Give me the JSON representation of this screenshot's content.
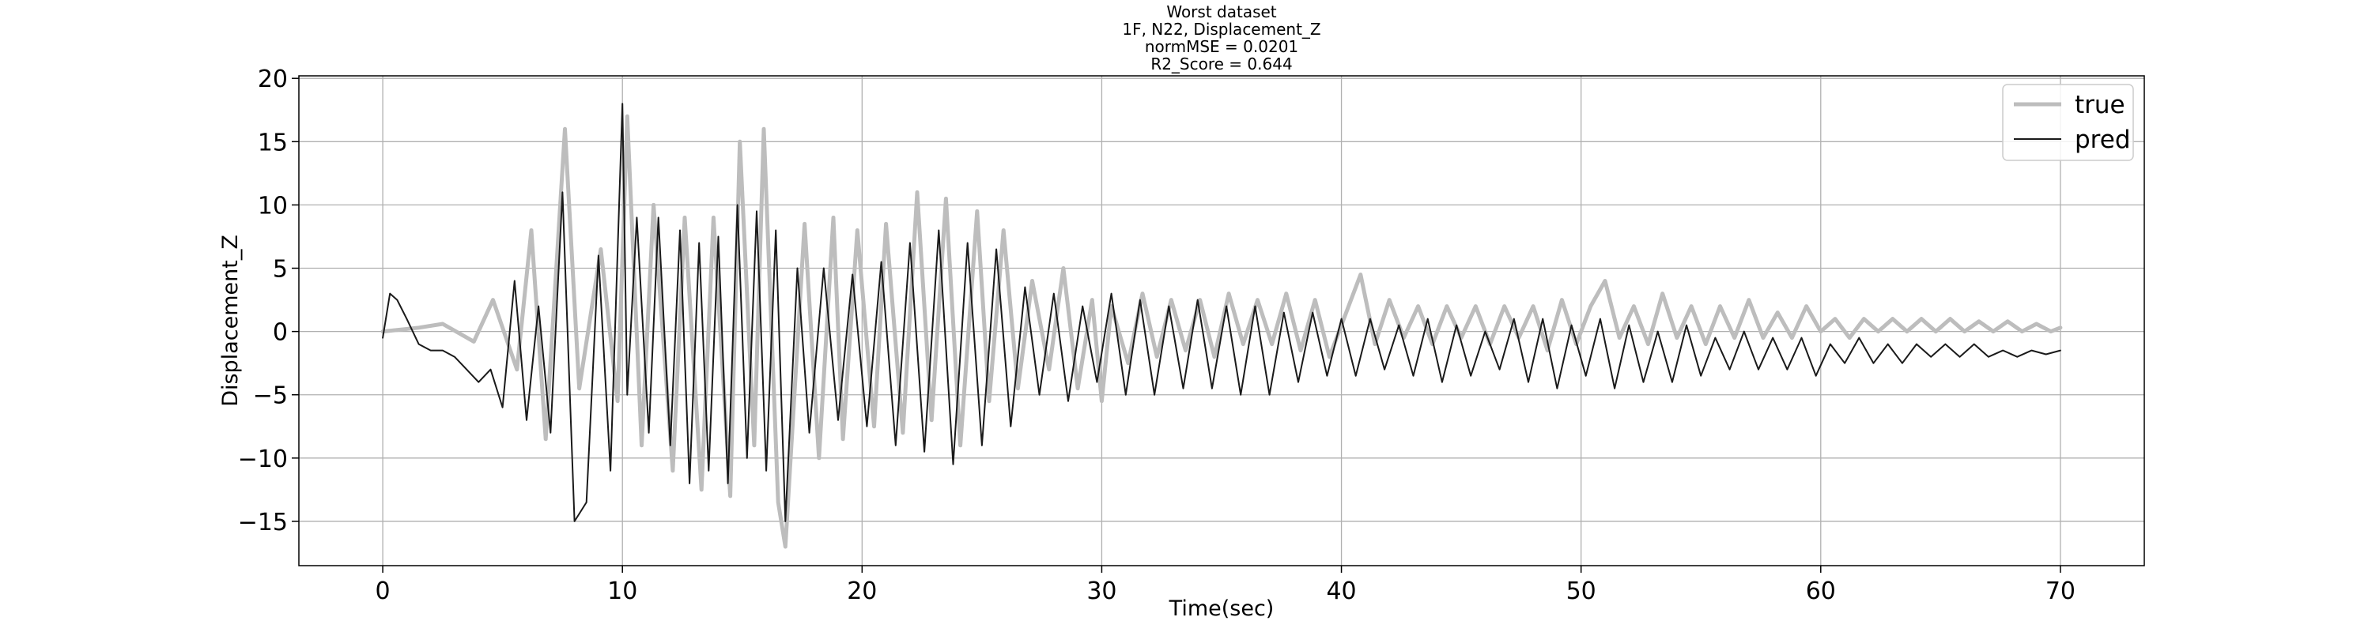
{
  "chart_data": {
    "type": "line",
    "title_lines": [
      "Worst dataset",
      "1F, N22, Displacement_Z",
      "normMSE = 0.0201",
      "R2_Score = 0.644"
    ],
    "xlabel": "Time(sec)",
    "ylabel": "Displacement_Z",
    "xlim": [
      -3.5,
      73.5
    ],
    "ylim": [
      -18.5,
      20.2
    ],
    "xticks": [
      0,
      10,
      20,
      30,
      40,
      50,
      60,
      70
    ],
    "yticks": [
      -15,
      -10,
      -5,
      0,
      5,
      10,
      15,
      20
    ],
    "xtick_labels": [
      "0",
      "10",
      "20",
      "30",
      "40",
      "50",
      "60",
      "70"
    ],
    "ytick_labels": [
      "−15",
      "−10",
      "−5",
      "0",
      "5",
      "10",
      "15",
      "20"
    ],
    "grid": true,
    "legend_position": "top-right",
    "series": [
      {
        "name": "true",
        "color": "#bdbdbd",
        "x": [
          0,
          1.5,
          2.5,
          3.8,
          4.6,
          5.6,
          6.2,
          6.8,
          7.6,
          8.2,
          9.1,
          9.8,
          10.2,
          10.8,
          11.3,
          12.1,
          12.6,
          13.3,
          13.8,
          14.5,
          14.9,
          15.5,
          15.9,
          16.5,
          16.8,
          17.6,
          18.2,
          18.8,
          19.2,
          19.8,
          20.5,
          21.0,
          21.7,
          22.3,
          22.9,
          23.5,
          24.1,
          24.8,
          25.3,
          25.9,
          26.5,
          27.1,
          27.8,
          28.4,
          29.0,
          29.6,
          30.0,
          30.4,
          31.1,
          31.7,
          32.3,
          32.9,
          33.5,
          34.1,
          34.7,
          35.3,
          35.9,
          36.5,
          37.1,
          37.7,
          38.3,
          38.9,
          39.5,
          40.1,
          40.8,
          41.4,
          42.0,
          42.6,
          43.2,
          43.8,
          44.4,
          45.0,
          45.6,
          46.2,
          46.8,
          47.4,
          48.0,
          48.6,
          49.2,
          49.8,
          50.4,
          51.0,
          51.6,
          52.2,
          52.8,
          53.4,
          54.0,
          54.6,
          55.2,
          55.8,
          56.4,
          57.0,
          57.6,
          58.2,
          58.8,
          59.4,
          60.0,
          60.6,
          61.2,
          61.8,
          62.4,
          63.0,
          63.6,
          64.2,
          64.8,
          65.4,
          66.0,
          66.6,
          67.2,
          67.8,
          68.4,
          69.0,
          69.6,
          70.0
        ],
        "y": [
          0.0,
          0.3,
          0.6,
          -0.8,
          2.5,
          -3.0,
          8.0,
          -8.5,
          16.0,
          -4.5,
          6.5,
          -5.5,
          17.0,
          -9.0,
          10.0,
          -11.0,
          9.0,
          -12.5,
          9.0,
          -13.0,
          15.0,
          -9.0,
          16.0,
          -13.5,
          -17.0,
          8.5,
          -10.0,
          9.0,
          -8.5,
          8.0,
          -7.5,
          8.5,
          -8.0,
          11.0,
          -7.0,
          10.5,
          -9.0,
          9.5,
          -5.5,
          8.0,
          -4.5,
          4.0,
          -3.0,
          5.0,
          -4.5,
          2.5,
          -5.5,
          2.0,
          -2.5,
          3.0,
          -2.0,
          2.5,
          -1.5,
          2.5,
          -2.0,
          3.0,
          -1.0,
          2.5,
          -1.0,
          3.0,
          -1.5,
          2.5,
          -2.0,
          1.0,
          4.5,
          -1.0,
          2.5,
          -0.5,
          2.0,
          -1.0,
          2.0,
          -0.5,
          2.0,
          -1.0,
          2.0,
          -0.5,
          2.0,
          -1.5,
          2.5,
          -1.0,
          2.0,
          4.0,
          -0.5,
          2.0,
          -1.0,
          3.0,
          -0.5,
          2.0,
          -1.0,
          2.0,
          -0.5,
          2.5,
          -0.5,
          1.5,
          -0.5,
          2.0,
          0.0,
          1.0,
          -0.5,
          1.0,
          0.0,
          1.0,
          0.0,
          1.0,
          0.0,
          1.0,
          0.0,
          0.8,
          0.0,
          0.8,
          0.0,
          0.6,
          0.0,
          0.3
        ]
      },
      {
        "name": "pred",
        "color": "#1a1a1a",
        "x": [
          0,
          0.3,
          0.6,
          1.0,
          1.5,
          2.0,
          2.5,
          3.0,
          3.5,
          4.0,
          4.5,
          5.0,
          5.5,
          6.0,
          6.5,
          7.0,
          7.5,
          8.0,
          8.5,
          9.0,
          9.5,
          10.0,
          10.2,
          10.6,
          11.1,
          11.5,
          12.0,
          12.4,
          12.8,
          13.2,
          13.6,
          14.0,
          14.4,
          14.8,
          15.2,
          15.6,
          16.0,
          16.4,
          16.8,
          17.3,
          17.8,
          18.4,
          19.0,
          19.6,
          20.2,
          20.8,
          21.4,
          22.0,
          22.6,
          23.2,
          23.8,
          24.4,
          25.0,
          25.6,
          26.2,
          26.8,
          27.4,
          28.0,
          28.6,
          29.2,
          29.8,
          30.4,
          31.0,
          31.6,
          32.2,
          32.8,
          33.4,
          34.0,
          34.6,
          35.2,
          35.8,
          36.4,
          37.0,
          37.6,
          38.2,
          38.8,
          39.4,
          40.0,
          40.6,
          41.2,
          41.8,
          42.4,
          43.0,
          43.6,
          44.2,
          44.8,
          45.4,
          46.0,
          46.6,
          47.2,
          47.8,
          48.4,
          49.0,
          49.6,
          50.2,
          50.8,
          51.4,
          52.0,
          52.6,
          53.2,
          53.8,
          54.4,
          55.0,
          55.6,
          56.2,
          56.8,
          57.4,
          58.0,
          58.6,
          59.2,
          59.8,
          60.4,
          61.0,
          61.6,
          62.2,
          62.8,
          63.4,
          64.0,
          64.6,
          65.2,
          65.8,
          66.4,
          67.0,
          67.6,
          68.2,
          68.8,
          69.4,
          70.0
        ],
        "y": [
          -0.5,
          3.0,
          2.5,
          1.0,
          -1.0,
          -1.5,
          -1.5,
          -2.0,
          -3.0,
          -4.0,
          -3.0,
          -6.0,
          4.0,
          -7.0,
          2.0,
          -8.0,
          11.0,
          -15.0,
          -13.5,
          6.0,
          -11.0,
          18.0,
          -5.0,
          9.0,
          -8.0,
          9.0,
          -9.0,
          8.0,
          -12.0,
          7.0,
          -11.0,
          7.5,
          -12.0,
          10.0,
          -10.0,
          9.5,
          -11.0,
          8.0,
          -15.0,
          5.0,
          -8.0,
          5.0,
          -7.0,
          4.5,
          -7.5,
          5.5,
          -9.0,
          7.0,
          -9.5,
          8.0,
          -10.5,
          7.0,
          -9.0,
          6.5,
          -7.5,
          3.5,
          -5.0,
          3.0,
          -5.5,
          2.0,
          -4.0,
          3.0,
          -5.0,
          2.5,
          -5.0,
          2.0,
          -4.5,
          2.5,
          -4.5,
          2.0,
          -5.0,
          2.0,
          -5.0,
          1.5,
          -4.0,
          1.5,
          -3.5,
          1.0,
          -3.5,
          1.0,
          -3.0,
          0.5,
          -3.5,
          1.0,
          -4.0,
          0.5,
          -3.5,
          0.0,
          -3.0,
          1.0,
          -4.0,
          1.0,
          -4.5,
          0.5,
          -3.5,
          1.0,
          -4.5,
          0.5,
          -4.0,
          0.0,
          -4.0,
          0.5,
          -3.5,
          -0.5,
          -3.0,
          0.0,
          -3.0,
          -0.5,
          -3.0,
          -0.5,
          -3.5,
          -1.0,
          -2.5,
          -0.5,
          -2.5,
          -1.0,
          -2.5,
          -1.0,
          -2.0,
          -1.0,
          -2.0,
          -1.0,
          -2.0,
          -1.5,
          -2.0,
          -1.5,
          -1.8,
          -1.5
        ]
      }
    ]
  }
}
